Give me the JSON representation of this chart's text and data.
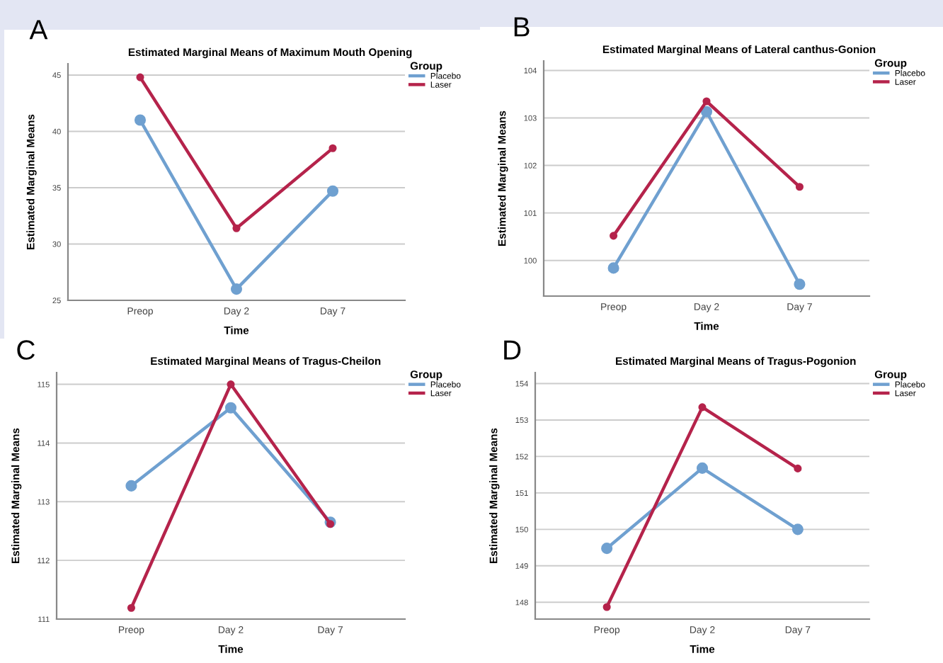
{
  "chart_data": [
    {
      "type": "line",
      "title": "Estimated Marginal Means of Maximum Mouth Opening",
      "xlabel": "Time",
      "ylabel": "Estimated Marginal Means",
      "legend_title": "Group",
      "annotations": [
        "A"
      ],
      "categories": [
        "Preop",
        "Day 2",
        "Day 7"
      ],
      "series": [
        {
          "name": "Placebo",
          "color": "#6fa0d0",
          "values": [
            41.0,
            26.0,
            34.7
          ]
        },
        {
          "name": "Laser",
          "color": "#b5234b",
          "values": [
            44.8,
            31.4,
            38.5
          ]
        }
      ],
      "ylim": [
        25,
        46
      ],
      "yticks": [
        25,
        30,
        35,
        40,
        45
      ],
      "grid": "y",
      "legend": "top right",
      "marker": "circle",
      "line_style": "solid"
    },
    {
      "type": "line",
      "title": "Estimated Marginal Means of Lateral canthus-Gonion",
      "xlabel": "Time",
      "ylabel": "Estimated Marginal Means",
      "legend_title": "Group",
      "annotations": [
        "B"
      ],
      "categories": [
        "Preop",
        "Day 2",
        "Day 7"
      ],
      "series": [
        {
          "name": "Placebo",
          "color": "#6fa0d0",
          "values": [
            99.84,
            103.13,
            99.5
          ]
        },
        {
          "name": "Laser",
          "color": "#b5234b",
          "values": [
            100.52,
            103.35,
            101.55
          ]
        }
      ],
      "ylim": [
        99.25,
        104.2
      ],
      "yticks": [
        100,
        101,
        102,
        103,
        104
      ],
      "grid": "y",
      "legend": "top right",
      "marker": "circle",
      "line_style": "solid"
    },
    {
      "type": "line",
      "title": "Estimated Marginal Means of Tragus-Cheilon",
      "xlabel": "Time",
      "ylabel": "Estimated Marginal Means",
      "legend_title": "Group",
      "annotations": [
        "C"
      ],
      "categories": [
        "Preop",
        "Day 2",
        "Day 7"
      ],
      "series": [
        {
          "name": "Placebo",
          "color": "#6fa0d0",
          "values": [
            113.27,
            114.6,
            112.65
          ]
        },
        {
          "name": "Laser",
          "color": "#b5234b",
          "values": [
            111.19,
            115.0,
            112.62
          ]
        }
      ],
      "ylim": [
        111,
        115.2
      ],
      "yticks": [
        111,
        112,
        113,
        114,
        115
      ],
      "grid": "y",
      "legend": "top right",
      "marker": "circle",
      "line_style": "solid"
    },
    {
      "type": "line",
      "title": "Estimated Marginal Means of Tragus-Pogonion",
      "xlabel": "Time",
      "ylabel": "Estimated Marginal Means",
      "legend_title": "Group",
      "annotations": [
        "D"
      ],
      "categories": [
        "Preop",
        "Day 2",
        "Day 7"
      ],
      "series": [
        {
          "name": "Placebo",
          "color": "#6fa0d0",
          "values": [
            149.48,
            151.68,
            150.0
          ]
        },
        {
          "name": "Laser",
          "color": "#b5234b",
          "values": [
            147.87,
            153.35,
            151.67
          ]
        }
      ],
      "ylim": [
        147.54,
        154.3
      ],
      "yticks": [
        148,
        149,
        150,
        151,
        152,
        153,
        154
      ],
      "grid": "y",
      "legend": "top right",
      "marker": "circle",
      "line_style": "solid"
    }
  ]
}
